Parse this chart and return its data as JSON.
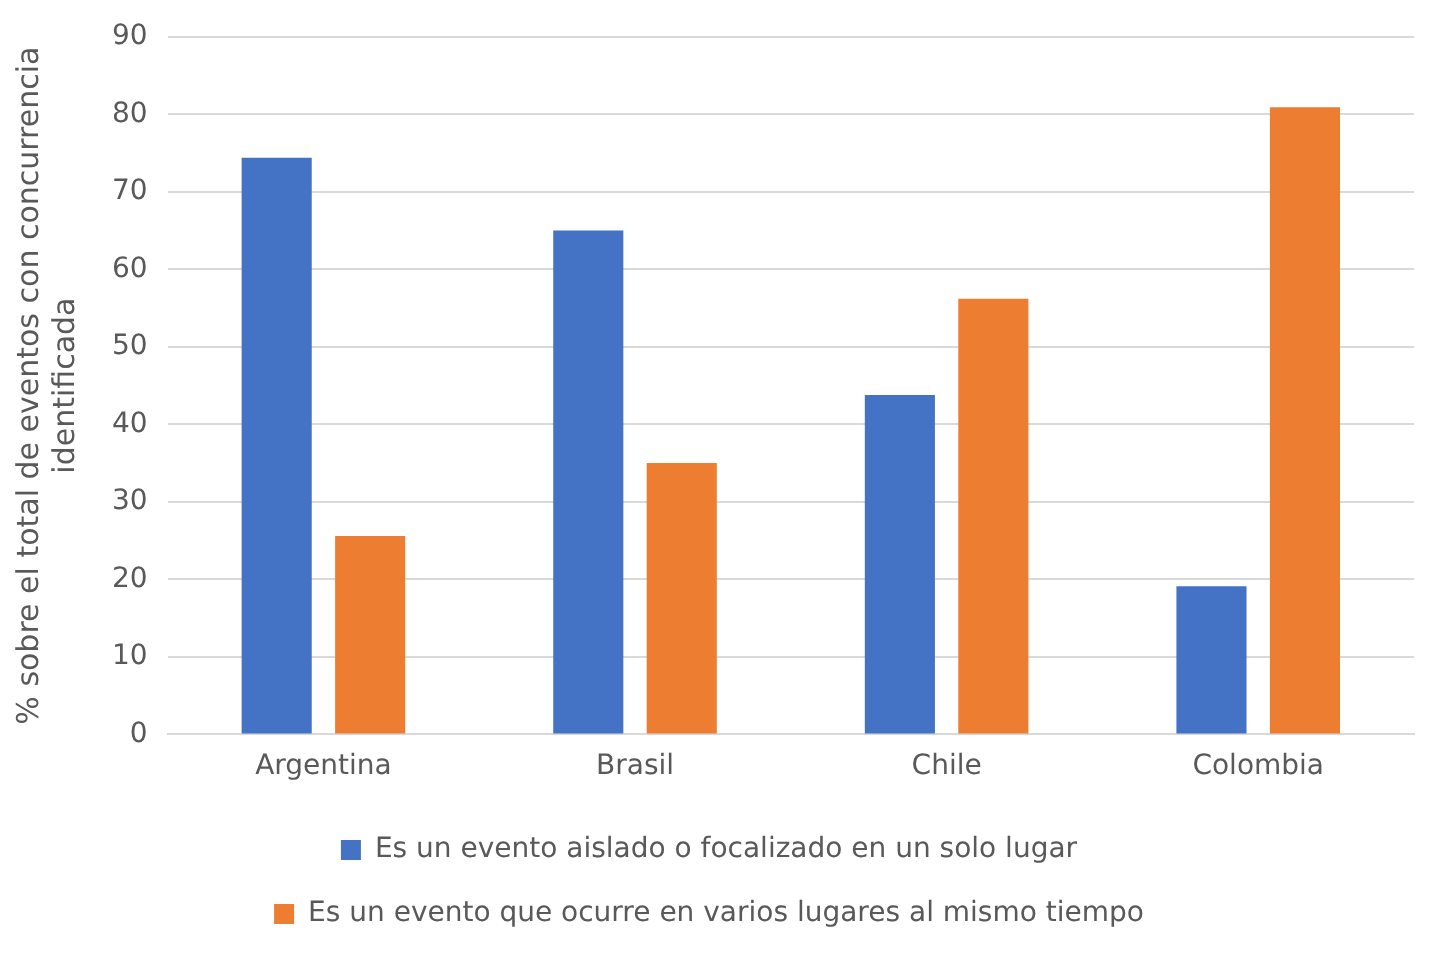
{
  "chart_data": {
    "type": "bar",
    "ylabel": "% sobre el total de eventos con concurrencia identificada",
    "categories": [
      "Argentina",
      "Brasil",
      "Chile",
      "Colombia"
    ],
    "series": [
      {
        "name": "Es un evento aislado o focalizado en un solo lugar",
        "color": "#4472c4",
        "values": [
          74.4,
          65,
          43.8,
          19.1
        ]
      },
      {
        "name": "Es un evento que ocurre en varios lugares al mismo tiempo",
        "color": "#ed7d31",
        "values": [
          25.6,
          35,
          56.2,
          80.9
        ]
      }
    ],
    "ylim": [
      0,
      90
    ],
    "yticks": [
      0,
      10,
      20,
      30,
      40,
      50,
      60,
      70,
      80,
      90
    ],
    "grid": "y",
    "legend": "bottom"
  }
}
